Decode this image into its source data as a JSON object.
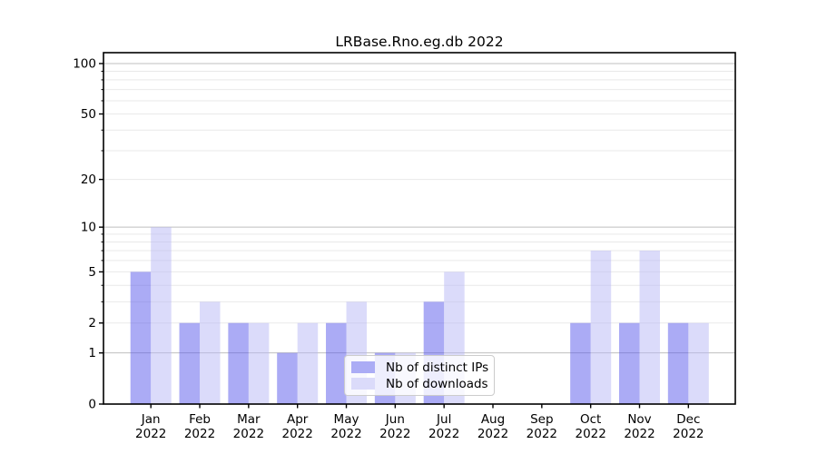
{
  "chart_data": {
    "type": "bar",
    "title": "LRBase.Rno.eg.db 2022",
    "categories": [
      "Jan 2022",
      "Feb 2022",
      "Mar 2022",
      "Apr 2022",
      "May 2022",
      "Jun 2022",
      "Jul 2022",
      "Aug 2022",
      "Sep 2022",
      "Oct 2022",
      "Nov 2022",
      "Dec 2022"
    ],
    "series": [
      {
        "name": "Nb of distinct IPs",
        "values": [
          5,
          2,
          2,
          1,
          2,
          1,
          3,
          0,
          0,
          2,
          2,
          2
        ]
      },
      {
        "name": "Nb of downloads",
        "values": [
          10,
          3,
          2,
          2,
          3,
          1,
          5,
          0,
          0,
          7,
          7,
          2
        ]
      }
    ],
    "xlabel": "",
    "ylabel": "",
    "yscale": "log1p",
    "ylim": [
      0,
      116
    ],
    "y_ticks": [
      {
        "value": 0,
        "label": "0"
      },
      {
        "value": 1,
        "label": "1"
      },
      {
        "value": 2,
        "label": "2"
      },
      {
        "value": 5,
        "label": "5"
      },
      {
        "value": 10,
        "label": "10"
      },
      {
        "value": 20,
        "label": "20"
      },
      {
        "value": 50,
        "label": "50"
      },
      {
        "value": 100,
        "label": "100"
      }
    ],
    "y_minor_gridlines": [
      2,
      3,
      4,
      5,
      6,
      7,
      8,
      9,
      20,
      30,
      40,
      50,
      60,
      70,
      80,
      90
    ],
    "y_major_gridlines": [
      1,
      10,
      100
    ],
    "grid": true,
    "legend_position": "lower center"
  },
  "colors": {
    "bar_ips": "rgba(88,88,235,0.5)",
    "bar_downloads": "rgba(183,183,245,0.5)",
    "bar_ips_solid": "#abacf5",
    "bar_downloads_solid": "#dbdbfa",
    "grid_major": "#bfbfbf",
    "grid_minor": "#e9e9e9",
    "axis": "#000000",
    "tick_label": "#000000",
    "legend_border": "#cccccc"
  }
}
